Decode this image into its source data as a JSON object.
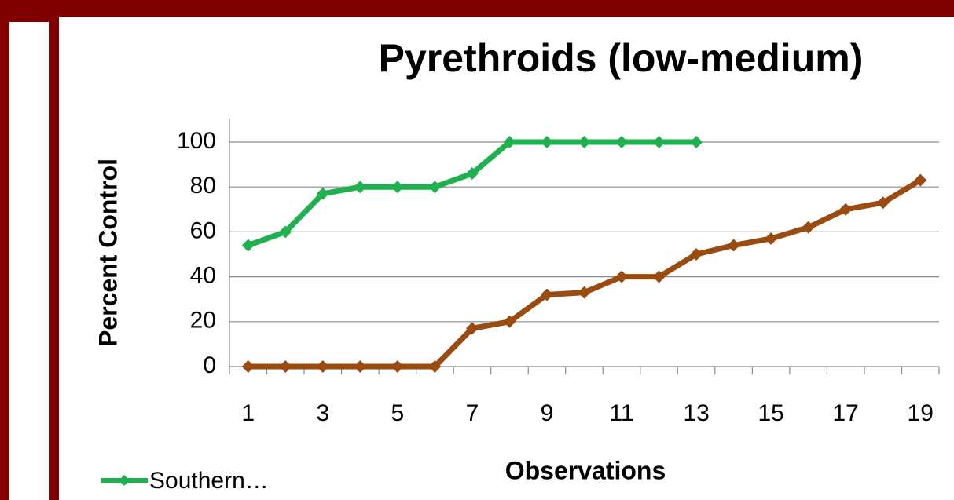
{
  "chart_data": {
    "type": "line",
    "title": "Pyrethroids (low-medium)",
    "x_label": "Observations",
    "y_label": "Percent Control",
    "categories": [
      "1",
      null,
      "3",
      null,
      "5",
      null,
      "7",
      null,
      "9",
      null,
      "11",
      null,
      "13",
      null,
      "15",
      null,
      "17",
      null,
      "19"
    ],
    "series": [
      {
        "name": "Southern…",
        "color": "#1fb14f",
        "values": [
          54,
          60,
          77,
          80,
          80,
          80,
          86,
          100,
          100,
          100,
          100,
          100,
          100,
          null,
          null,
          null,
          null,
          null,
          null
        ]
      },
      {
        "color": "#9a4b10",
        "values": [
          0,
          0,
          0,
          0,
          0,
          0,
          17,
          20,
          32,
          33,
          40,
          40,
          50,
          54,
          57,
          62,
          70,
          73,
          83
        ]
      }
    ],
    "ylim": [
      0,
      100
    ],
    "yticks": [
      0,
      20,
      40,
      60,
      80,
      100
    ],
    "grid": true
  }
}
